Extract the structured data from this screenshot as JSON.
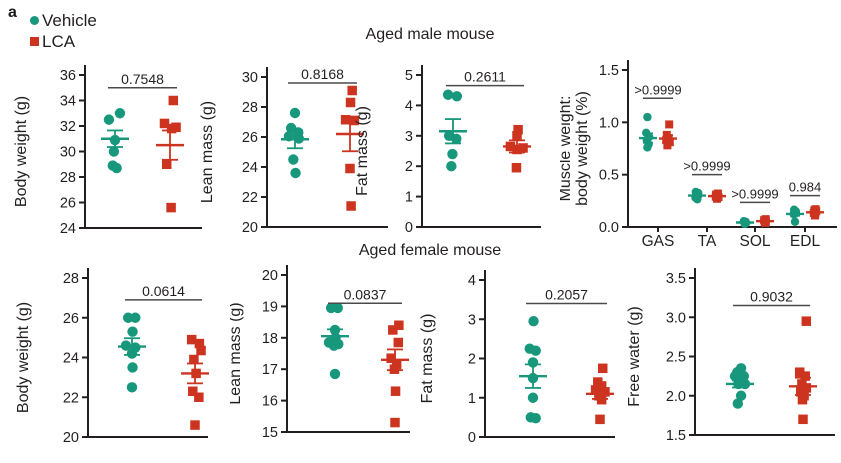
{
  "panel_label": "a",
  "legend": {
    "items": [
      {
        "label": "Vehicle",
        "marker": "circle",
        "color": "#17977B"
      },
      {
        "label": "LCA",
        "marker": "square",
        "color": "#CD3420"
      }
    ]
  },
  "titles": {
    "male": "Aged male mouse",
    "female": "Aged female mouse"
  },
  "colors": {
    "vehicle": "#17977B",
    "lca": "#CD3420",
    "axis": "#231F20",
    "bracket": "#4A4A4A",
    "text": "#231F20"
  },
  "chart_data": [
    {
      "id": "male-body-weight",
      "type": "scatter",
      "group_title": "Aged male mouse",
      "ylabel": [
        "Body weight (g)"
      ],
      "ylim": [
        24,
        36
      ],
      "yticks": [
        24,
        26,
        28,
        30,
        32,
        34,
        36
      ],
      "ytick_labels": [
        "24",
        "26",
        "28",
        "30",
        "32",
        "34",
        "36"
      ],
      "groups": [
        {
          "name": "Vehicle",
          "series": "vehicle",
          "points": [
            [
              32.5,
              -0.55
            ],
            [
              33.0,
              0.45
            ],
            [
              30.9,
              0.0
            ],
            [
              30.0,
              -0.1
            ],
            [
              28.9,
              -0.2
            ],
            [
              28.7,
              0.15
            ]
          ],
          "mean": 31.0,
          "sem": 0.65
        },
        {
          "name": "LCA",
          "series": "lca",
          "points": [
            [
              34.0,
              0.3
            ],
            [
              32.2,
              -0.5
            ],
            [
              31.9,
              0.55
            ],
            [
              31.8,
              0.15
            ],
            [
              29.0,
              -0.3
            ],
            [
              25.6,
              0.1
            ]
          ],
          "mean": 30.5,
          "sem": 1.15
        }
      ],
      "comparisons": [
        {
          "p": "0.7548",
          "g1": 0,
          "g2": 1,
          "y": 35.0
        }
      ]
    },
    {
      "id": "male-lean-mass",
      "type": "scatter",
      "group_title": "Aged male mouse",
      "ylabel": [
        "Lean mass (g)"
      ],
      "ylim": [
        20,
        30
      ],
      "yticks": [
        20,
        22,
        24,
        26,
        28,
        30
      ],
      "ytick_labels": [
        "20",
        "22",
        "24",
        "26",
        "28",
        "30"
      ],
      "groups": [
        {
          "name": "Vehicle",
          "series": "vehicle",
          "points": [
            [
              27.6,
              0.0
            ],
            [
              26.6,
              -0.35
            ],
            [
              26.3,
              0.3
            ],
            [
              26.05,
              -0.55
            ],
            [
              25.9,
              0.35
            ],
            [
              24.5,
              -0.15
            ],
            [
              23.6,
              0.05
            ]
          ],
          "mean": 25.85,
          "sem": 0.6
        },
        {
          "name": "LCA",
          "series": "lca",
          "points": [
            [
              29.1,
              0.2
            ],
            [
              28.3,
              0.05
            ],
            [
              27.15,
              -0.4
            ],
            [
              27.1,
              0.4
            ],
            [
              23.9,
              0.0
            ],
            [
              21.4,
              0.1
            ]
          ],
          "mean": 26.2,
          "sem": 1.15
        }
      ],
      "comparisons": [
        {
          "p": "0.8168",
          "g1": 0,
          "g2": 1,
          "y": 29.6
        }
      ]
    },
    {
      "id": "male-fat-mass",
      "type": "scatter",
      "group_title": "Aged male mouse",
      "ylabel": [
        "Fat mass (g)"
      ],
      "ylim": [
        0,
        5
      ],
      "yticks": [
        0,
        1,
        2,
        3,
        4,
        5
      ],
      "ytick_labels": [
        "0",
        "1",
        "2",
        "3",
        "4",
        "5"
      ],
      "groups": [
        {
          "name": "Vehicle",
          "series": "vehicle",
          "points": [
            [
              4.35,
              -0.45
            ],
            [
              4.3,
              0.35
            ],
            [
              3.0,
              -0.35
            ],
            [
              2.9,
              0.3
            ],
            [
              2.4,
              -0.05
            ],
            [
              2.0,
              -0.15
            ]
          ],
          "mean": 3.15,
          "sem": 0.4
        },
        {
          "name": "LCA",
          "series": "lca",
          "points": [
            [
              3.2,
              0.1
            ],
            [
              3.0,
              0.0
            ],
            [
              2.65,
              -0.6
            ],
            [
              2.6,
              0.55
            ],
            [
              2.55,
              0.0
            ],
            [
              1.95,
              -0.05
            ]
          ],
          "mean": 2.65,
          "sem": 0.2
        }
      ],
      "comparisons": [
        {
          "p": "0.2611",
          "g1": 0,
          "g2": 1,
          "y": 4.65
        }
      ]
    },
    {
      "id": "male-muscle-weight-ratio",
      "type": "scatter",
      "group_title": "Aged male mouse",
      "ylabel": [
        "Muscle weight:",
        "body weight (%)"
      ],
      "ylim": [
        0,
        1.5
      ],
      "yticks": [
        0.0,
        0.5,
        1.0,
        1.5
      ],
      "ytick_labels": [
        "0.0",
        "0.5",
        "1.0",
        "1.5"
      ],
      "xcategories": [
        "GAS",
        "TA",
        "SOL",
        "EDL"
      ],
      "groups": [
        {
          "name": "Vehicle",
          "series": "vehicle",
          "category": "GAS",
          "points": [
            [
              1.05,
              -0.1
            ],
            [
              0.9,
              -0.3
            ],
            [
              0.86,
              0.2
            ],
            [
              0.83,
              -0.2
            ],
            [
              0.79,
              0.1
            ],
            [
              0.76,
              -0.1
            ]
          ],
          "mean": 0.85,
          "sem": 0.045
        },
        {
          "name": "LCA",
          "series": "lca",
          "category": "GAS",
          "points": [
            [
              0.98,
              0.2
            ],
            [
              0.88,
              -0.2
            ],
            [
              0.85,
              0.1
            ],
            [
              0.83,
              -0.3
            ],
            [
              0.81,
              0.3
            ],
            [
              0.78,
              -0.1
            ]
          ],
          "mean": 0.845,
          "sem": 0.03
        },
        {
          "name": "Vehicle",
          "series": "vehicle",
          "category": "TA",
          "points": [
            [
              0.335,
              -0.2
            ],
            [
              0.325,
              0.2
            ],
            [
              0.31,
              -0.1
            ],
            [
              0.295,
              0.1
            ],
            [
              0.28,
              -0.25
            ],
            [
              0.265,
              0.05
            ]
          ],
          "mean": 0.3,
          "sem": 0.012
        },
        {
          "name": "LCA",
          "series": "lca",
          "category": "TA",
          "points": [
            [
              0.32,
              0.15
            ],
            [
              0.31,
              -0.15
            ],
            [
              0.3,
              0.05
            ],
            [
              0.29,
              -0.2
            ],
            [
              0.285,
              0.25
            ],
            [
              0.27,
              0.0
            ]
          ],
          "mean": 0.295,
          "sem": 0.01
        },
        {
          "name": "Vehicle",
          "series": "vehicle",
          "category": "SOL",
          "points": [
            [
              0.055,
              -0.2
            ],
            [
              0.05,
              0.1
            ],
            [
              0.045,
              -0.1
            ],
            [
              0.04,
              0.2
            ],
            [
              0.035,
              0.0
            ],
            [
              0.03,
              -0.05
            ]
          ],
          "mean": 0.043,
          "sem": 0.004
        },
        {
          "name": "LCA",
          "series": "lca",
          "category": "SOL",
          "points": [
            [
              0.075,
              0.1
            ],
            [
              0.065,
              -0.15
            ],
            [
              0.06,
              0.15
            ],
            [
              0.05,
              -0.05
            ],
            [
              0.045,
              0.1
            ],
            [
              0.04,
              0.0
            ]
          ],
          "mean": 0.056,
          "sem": 0.006
        },
        {
          "name": "Vehicle",
          "series": "vehicle",
          "category": "EDL",
          "points": [
            [
              0.165,
              -0.15
            ],
            [
              0.15,
              0.15
            ],
            [
              0.14,
              -0.05
            ],
            [
              0.13,
              0.1
            ],
            [
              0.12,
              -0.2
            ],
            [
              0.05,
              0.0
            ]
          ],
          "mean": 0.125,
          "sem": 0.017
        },
        {
          "name": "LCA",
          "series": "lca",
          "category": "EDL",
          "points": [
            [
              0.17,
              0.1
            ],
            [
              0.16,
              -0.1
            ],
            [
              0.15,
              0.2
            ],
            [
              0.135,
              -0.2
            ],
            [
              0.125,
              0.05
            ],
            [
              0.11,
              0.0
            ]
          ],
          "mean": 0.14,
          "sem": 0.01
        }
      ],
      "comparisons": [
        {
          "p": ">0.9999",
          "g1": 0,
          "g2": 1,
          "y": 1.23
        },
        {
          "p": ">0.9999",
          "g1": 2,
          "g2": 3,
          "y": 0.5
        },
        {
          "p": ">0.9999",
          "g1": 4,
          "g2": 5,
          "y": 0.235
        },
        {
          "p": "0.984",
          "g1": 6,
          "g2": 7,
          "y": 0.3
        }
      ]
    },
    {
      "id": "female-body-weight",
      "type": "scatter",
      "group_title": "Aged female mouse",
      "ylabel": [
        "Body weight (g)"
      ],
      "ylim": [
        20,
        28
      ],
      "yticks": [
        20,
        22,
        24,
        26,
        28
      ],
      "ytick_labels": [
        "20",
        "22",
        "24",
        "26",
        "28"
      ],
      "groups": [
        {
          "name": "Vehicle",
          "series": "vehicle",
          "points": [
            [
              26.0,
              -0.35
            ],
            [
              26.0,
              0.3
            ],
            [
              25.3,
              0.05
            ],
            [
              24.6,
              -0.55
            ],
            [
              24.5,
              0.3
            ],
            [
              24.2,
              0.0
            ],
            [
              23.5,
              0.05
            ],
            [
              22.5,
              0.0
            ]
          ],
          "mean": 24.55,
          "sem": 0.42
        },
        {
          "name": "LCA",
          "series": "lca",
          "points": [
            [
              24.9,
              -0.3
            ],
            [
              24.7,
              0.4
            ],
            [
              24.35,
              0.55
            ],
            [
              23.9,
              -0.1
            ],
            [
              23.2,
              0.1
            ],
            [
              22.3,
              -0.2
            ],
            [
              22.0,
              0.35
            ],
            [
              20.6,
              0.0
            ]
          ],
          "mean": 23.2,
          "sem": 0.5
        }
      ],
      "comparisons": [
        {
          "p": "0.0614",
          "g1": 0,
          "g2": 1,
          "y": 26.9
        }
      ]
    },
    {
      "id": "female-lean-mass",
      "type": "scatter",
      "group_title": "Aged female mouse",
      "ylabel": [
        "Lean mass (g)"
      ],
      "ylim": [
        15,
        20
      ],
      "yticks": [
        15,
        16,
        17,
        18,
        19,
        20
      ],
      "ytick_labels": [
        "15",
        "16",
        "17",
        "18",
        "19",
        "20"
      ],
      "groups": [
        {
          "name": "Vehicle",
          "series": "vehicle",
          "points": [
            [
              18.95,
              -0.35
            ],
            [
              18.95,
              0.25
            ],
            [
              18.25,
              0.0
            ],
            [
              18.0,
              0.05
            ],
            [
              17.85,
              -0.55
            ],
            [
              17.8,
              0.3
            ],
            [
              17.75,
              -0.1
            ],
            [
              16.85,
              0.0
            ]
          ],
          "mean": 18.05,
          "sem": 0.22
        },
        {
          "name": "LCA",
          "series": "lca",
          "points": [
            [
              18.4,
              0.35
            ],
            [
              18.25,
              -0.2
            ],
            [
              17.85,
              0.3
            ],
            [
              17.35,
              -0.35
            ],
            [
              17.15,
              0.15
            ],
            [
              17.0,
              -0.05
            ],
            [
              16.3,
              0.05
            ],
            [
              15.3,
              0.0
            ]
          ],
          "mean": 17.3,
          "sem": 0.33
        }
      ],
      "comparisons": [
        {
          "p": "0.0837",
          "g1": 0,
          "g2": 1,
          "y": 19.1
        }
      ]
    },
    {
      "id": "female-fat-mass",
      "type": "scatter",
      "group_title": "Aged female mouse",
      "ylabel": [
        "Fat mass (g)"
      ],
      "ylim": [
        0,
        4
      ],
      "yticks": [
        0,
        1,
        2,
        3,
        4
      ],
      "ytick_labels": [
        "0",
        "1",
        "2",
        "3",
        "4"
      ],
      "groups": [
        {
          "name": "Vehicle",
          "series": "vehicle",
          "points": [
            [
              2.95,
              0.05
            ],
            [
              2.25,
              -0.3
            ],
            [
              2.2,
              0.25
            ],
            [
              1.9,
              0.0
            ],
            [
              1.5,
              0.0
            ],
            [
              1.0,
              0.0
            ],
            [
              0.5,
              -0.2
            ],
            [
              0.48,
              0.25
            ]
          ],
          "mean": 1.55,
          "sem": 0.3
        },
        {
          "name": "LCA",
          "series": "lca",
          "points": [
            [
              1.75,
              0.25
            ],
            [
              1.4,
              -0.2
            ],
            [
              1.3,
              0.15
            ],
            [
              1.2,
              -0.4
            ],
            [
              1.15,
              0.45
            ],
            [
              1.05,
              -0.1
            ],
            [
              0.95,
              0.15
            ],
            [
              0.45,
              0.0
            ]
          ],
          "mean": 1.1,
          "sem": 0.13
        }
      ],
      "comparisons": [
        {
          "p": "0.2057",
          "g1": 0,
          "g2": 1,
          "y": 3.4
        }
      ]
    },
    {
      "id": "female-free-water",
      "type": "scatter",
      "group_title": "Aged female mouse",
      "ylabel": [
        "Free water (g)"
      ],
      "ylim": [
        1.5,
        3.5
      ],
      "yticks": [
        1.5,
        2.0,
        2.5,
        3.0,
        3.5
      ],
      "ytick_labels": [
        "1.5",
        "2.0",
        "2.5",
        "3.0",
        "3.5"
      ],
      "groups": [
        {
          "name": "Vehicle",
          "series": "vehicle",
          "points": [
            [
              2.35,
              0.1
            ],
            [
              2.3,
              -0.25
            ],
            [
              2.25,
              -0.45
            ],
            [
              2.25,
              0.35
            ],
            [
              2.2,
              0.15
            ],
            [
              2.15,
              -0.15
            ],
            [
              2.15,
              0.45
            ],
            [
              2.0,
              0.1
            ],
            [
              1.9,
              -0.2
            ]
          ],
          "mean": 2.15,
          "sem": 0.045
        },
        {
          "name": "LCA",
          "series": "lca",
          "points": [
            [
              2.95,
              0.3
            ],
            [
              2.3,
              -0.3
            ],
            [
              2.25,
              0.2
            ],
            [
              2.15,
              -0.1
            ],
            [
              2.1,
              0.3
            ],
            [
              2.05,
              -0.2
            ],
            [
              2.0,
              0.1
            ],
            [
              1.95,
              -0.05
            ],
            [
              1.7,
              0.0
            ]
          ],
          "mean": 2.12,
          "sem": 0.11
        }
      ],
      "comparisons": [
        {
          "p": "0.9032",
          "g1": 0,
          "g2": 1,
          "y": 3.15
        }
      ]
    }
  ]
}
